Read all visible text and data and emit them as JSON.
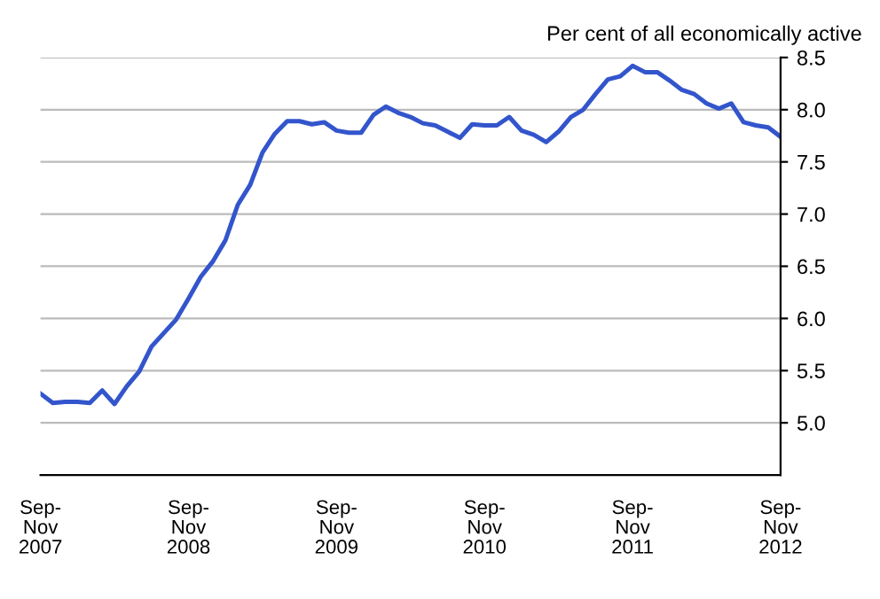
{
  "chart_data": {
    "type": "line",
    "ylabel": "Per cent of all economically active",
    "categories": [
      "Sep-\nNov\n2007",
      null,
      null,
      null,
      null,
      null,
      null,
      null,
      null,
      null,
      null,
      null,
      "Sep-\nNov\n2008",
      null,
      null,
      null,
      null,
      null,
      null,
      null,
      null,
      null,
      null,
      null,
      "Sep-\nNov\n2009",
      null,
      null,
      null,
      null,
      null,
      null,
      null,
      null,
      null,
      null,
      null,
      "Sep-\nNov\n2010",
      null,
      null,
      null,
      null,
      null,
      null,
      null,
      null,
      null,
      null,
      null,
      "Sep-\nNov\n2011",
      null,
      null,
      null,
      null,
      null,
      null,
      null,
      null,
      null,
      null,
      null,
      "Sep-\nNov\n2012"
    ],
    "series": [
      {
        "color": "#3355cc",
        "values": [
          5.28,
          5.19,
          5.2,
          5.2,
          5.19,
          5.31,
          5.18,
          5.35,
          5.49,
          5.73,
          5.86,
          5.99,
          6.19,
          6.4,
          6.55,
          6.75,
          7.09,
          7.28,
          7.59,
          7.77,
          7.89,
          7.89,
          7.86,
          7.88,
          7.8,
          7.78,
          7.78,
          7.95,
          8.03,
          7.97,
          7.93,
          7.87,
          7.85,
          7.79,
          7.73,
          7.86,
          7.85,
          7.85,
          7.93,
          7.8,
          7.76,
          7.69,
          7.79,
          7.93,
          8.0,
          8.15,
          8.29,
          8.32,
          8.42,
          8.36,
          8.36,
          8.28,
          8.19,
          8.15,
          8.06,
          8.01,
          8.06,
          7.88,
          7.85,
          7.83,
          7.74
        ]
      }
    ],
    "ylim": [
      4.5,
      8.5
    ],
    "yticks": [
      {
        "value": 5.0,
        "label": "5.0"
      },
      {
        "value": 5.5,
        "label": "5.5"
      },
      {
        "value": 6.0,
        "label": "6.0"
      },
      {
        "value": 6.5,
        "label": "6.5"
      },
      {
        "value": 7.0,
        "label": "7.0"
      },
      {
        "value": 7.5,
        "label": "7.5"
      },
      {
        "value": 8.0,
        "label": "8.0"
      },
      {
        "value": 8.5,
        "label": "8.5"
      }
    ],
    "grid": "y",
    "legend": false,
    "marker": "none",
    "line_style": "solid"
  }
}
